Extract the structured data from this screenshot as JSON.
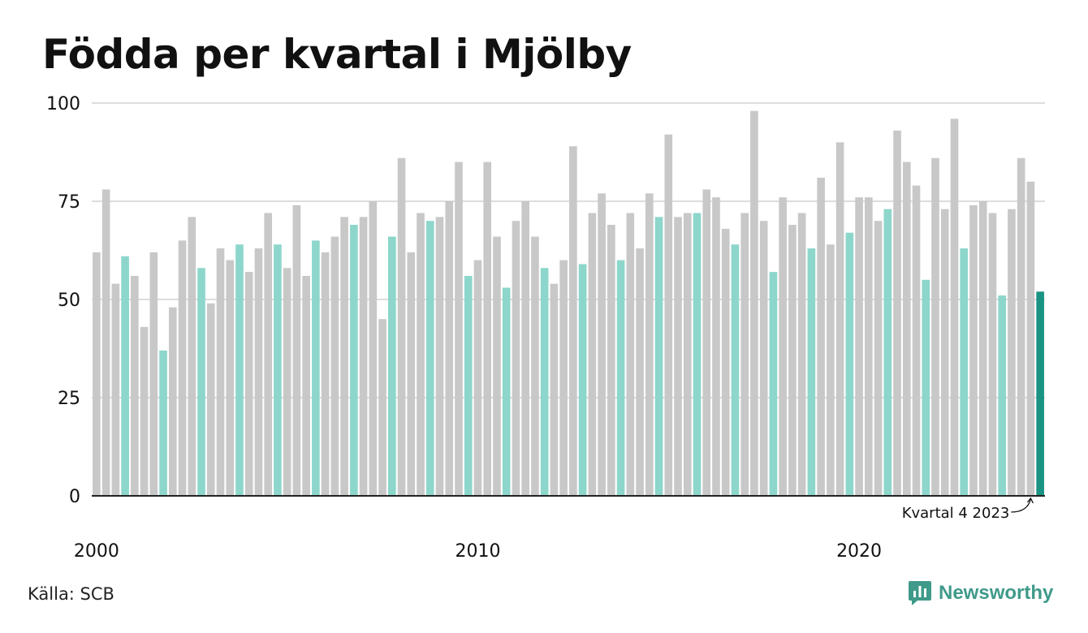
{
  "title": "Födda per kvartal i Mjölby",
  "source": "Källa: SCB",
  "brand": {
    "name": "Newsworthy",
    "icon": "newsworthy-logo-icon"
  },
  "colors": {
    "default": "#c8c8c8",
    "q4": "#8dd6cb",
    "latest": "#1a9383",
    "grid": "#dddddd",
    "axis": "#222222"
  },
  "chart_data": {
    "type": "bar",
    "title": "Födda per kvartal i Mjölby",
    "xlabel": "",
    "ylabel": "",
    "ylim": [
      0,
      100
    ],
    "yticks": [
      0,
      25,
      50,
      75,
      100
    ],
    "x_tick_labels": [
      "2000",
      "2010",
      "2020"
    ],
    "grid": true,
    "start": "2000 Q1",
    "values": [
      62,
      78,
      54,
      61,
      56,
      43,
      62,
      37,
      48,
      65,
      71,
      58,
      49,
      63,
      60,
      64,
      57,
      63,
      72,
      64,
      58,
      74,
      56,
      65,
      62,
      66,
      71,
      69,
      71,
      75,
      45,
      66,
      86,
      62,
      72,
      70,
      71,
      75,
      85,
      56,
      60,
      85,
      66,
      53,
      70,
      75,
      66,
      58,
      54,
      60,
      89,
      59,
      72,
      77,
      69,
      60,
      72,
      63,
      77,
      71,
      92,
      71,
      72,
      72,
      78,
      76,
      68,
      64,
      72,
      98,
      70,
      57,
      76,
      69,
      72,
      63,
      81,
      64,
      90,
      67,
      76,
      76,
      70,
      73,
      93,
      85,
      79,
      55,
      86,
      73,
      96,
      63,
      74,
      75,
      72,
      51,
      73,
      86,
      80,
      52
    ],
    "highlight": "Kvartal 4 (alla år)",
    "annotation": {
      "label": "Kvartal 4 2023",
      "value": 51
    },
    "latest": {
      "value": 52
    }
  }
}
